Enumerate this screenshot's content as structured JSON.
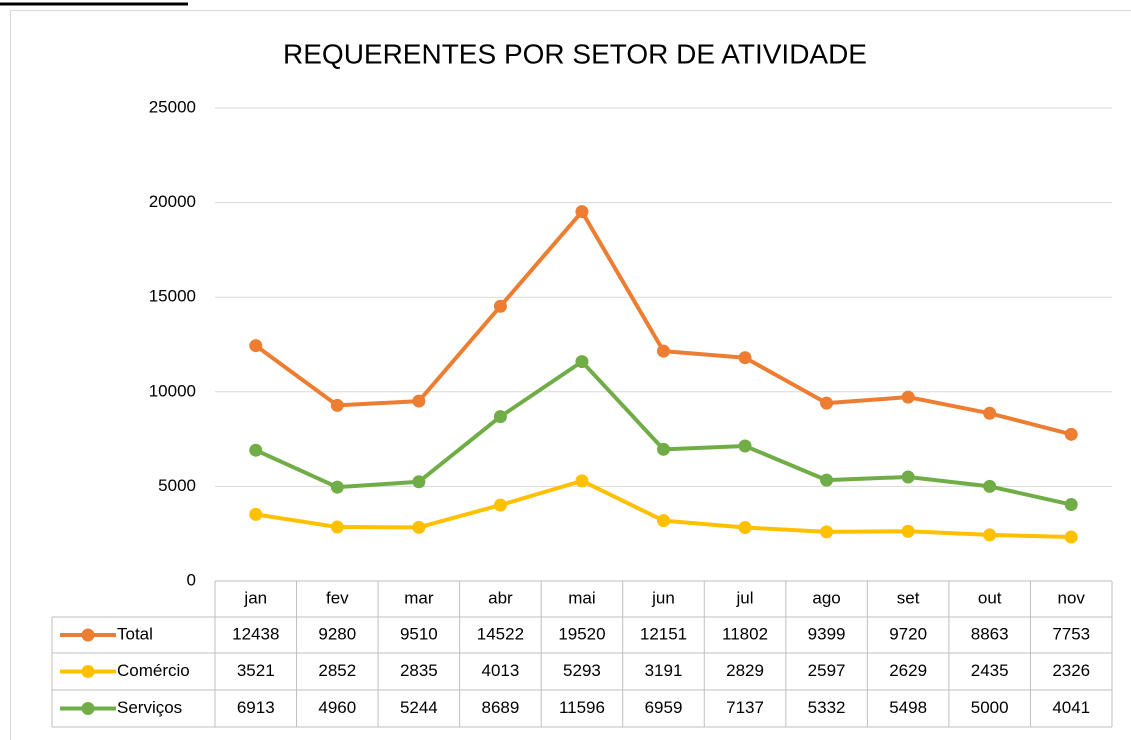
{
  "chart_data": {
    "type": "line",
    "title": "REQUERENTES POR SETOR DE ATIVIDADE",
    "categories": [
      "jan",
      "fev",
      "mar",
      "abr",
      "mai",
      "jun",
      "jul",
      "ago",
      "set",
      "out",
      "nov"
    ],
    "series": [
      {
        "name": "Total",
        "color": "#ed7d31",
        "values": [
          12438,
          9280,
          9510,
          14522,
          19520,
          12151,
          11802,
          9399,
          9720,
          8863,
          7753
        ]
      },
      {
        "name": "Comércio",
        "color": "#ffc000",
        "values": [
          3521,
          2852,
          2835,
          4013,
          5293,
          3191,
          2829,
          2597,
          2629,
          2435,
          2326
        ]
      },
      {
        "name": "Serviços",
        "color": "#70ad47",
        "values": [
          6913,
          4960,
          5244,
          8689,
          11596,
          6959,
          7137,
          5332,
          5498,
          5000,
          4041
        ]
      }
    ],
    "ylim": [
      0,
      25000
    ],
    "yticks": [
      0,
      5000,
      10000,
      15000,
      20000,
      25000
    ],
    "grid": true
  }
}
